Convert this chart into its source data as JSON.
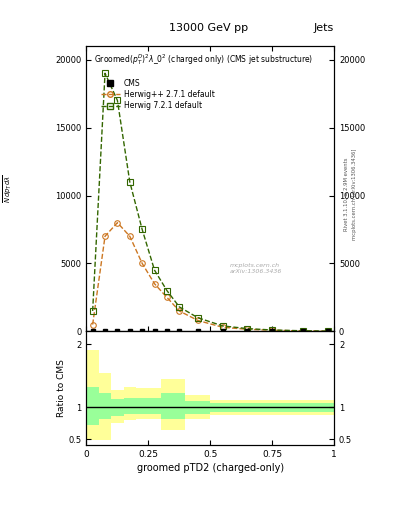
{
  "title_top": "13000 GeV pp",
  "title_right": "Jets",
  "xlabel": "groomed pTD2 (charged-only)",
  "ylabel_ratio": "Ratio to CMS",
  "right_label_top": "Rivet 3.1.10, ≥ 2.9M events",
  "right_label_bot": "mcplots.cern.ch [arXiv:1306.3436]",
  "herwig_x": [
    0.025,
    0.075,
    0.125,
    0.175,
    0.225,
    0.275,
    0.325,
    0.375,
    0.45,
    0.55,
    0.65,
    0.75,
    0.875,
    0.975
  ],
  "herwig_pp_y": [
    500,
    7000,
    8000,
    7000,
    5000,
    3500,
    2500,
    1500,
    800,
    300,
    150,
    80,
    30,
    10
  ],
  "herwig7_y": [
    1500,
    19000,
    17000,
    11000,
    7500,
    4500,
    3000,
    1800,
    1000,
    400,
    200,
    100,
    40,
    15
  ],
  "cms_x": [
    0.025,
    0.075,
    0.125,
    0.175,
    0.225,
    0.275,
    0.325,
    0.375,
    0.45,
    0.55,
    0.65,
    0.75,
    0.875,
    0.975
  ],
  "cms_y": [
    0,
    0,
    0,
    0,
    0,
    0,
    0,
    0,
    0,
    0,
    0,
    0,
    0,
    0
  ],
  "ratio_x_edges": [
    0.0,
    0.05,
    0.1,
    0.15,
    0.2,
    0.3,
    0.4,
    0.5,
    0.6,
    0.7,
    0.8,
    0.9,
    1.0
  ],
  "ratio_yellow_lo": [
    0.48,
    0.48,
    0.75,
    0.8,
    0.82,
    0.65,
    0.82,
    0.88,
    0.88,
    0.88,
    0.88,
    0.88
  ],
  "ratio_yellow_hi": [
    1.9,
    1.55,
    1.28,
    1.32,
    1.3,
    1.45,
    1.2,
    1.12,
    1.12,
    1.12,
    1.12,
    1.12
  ],
  "ratio_green_lo": [
    0.72,
    0.82,
    0.87,
    0.9,
    0.9,
    0.82,
    0.9,
    0.93,
    0.93,
    0.93,
    0.93,
    0.93
  ],
  "ratio_green_hi": [
    1.32,
    1.22,
    1.13,
    1.15,
    1.15,
    1.22,
    1.1,
    1.07,
    1.07,
    1.07,
    1.07,
    1.07
  ],
  "color_herwig_pp": "#cc7722",
  "color_herwig7": "#336600",
  "color_cms": "#000000",
  "color_yellow": "#ffff99",
  "color_green": "#99ff99",
  "ylim_main": [
    0,
    21000
  ],
  "ylim_ratio": [
    0.4,
    2.2
  ],
  "xlim": [
    0.0,
    1.0
  ],
  "yticks_main": [
    0,
    5000,
    10000,
    15000,
    20000
  ],
  "ytick_labels_main": [
    "0",
    "5000",
    "10000",
    "15000",
    "20000"
  ],
  "xticks": [
    0.0,
    0.25,
    0.5,
    0.75,
    1.0
  ],
  "xtick_labels": [
    "0",
    "0.25",
    "0.5",
    "0.75",
    "1"
  ]
}
